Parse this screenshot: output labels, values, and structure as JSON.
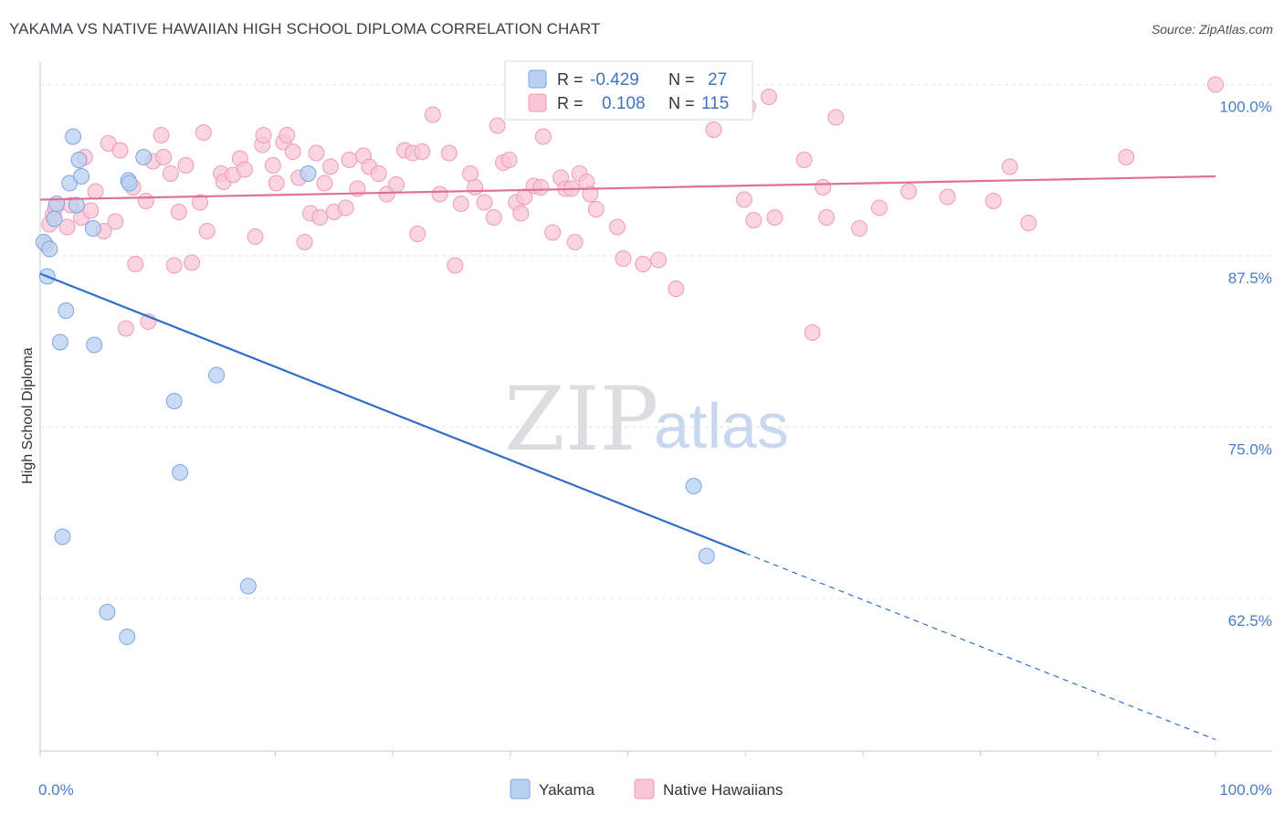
{
  "title": "YAKAMA VS NATIVE HAWAIIAN HIGH SCHOOL DIPLOMA CORRELATION CHART",
  "source": "Source: ZipAtlas.com",
  "watermark": {
    "zip": "ZIP",
    "atlas": "atlas"
  },
  "colors": {
    "yakama_fill": "#b8d0f2",
    "yakama_stroke": "#7ea6df",
    "yakama_line": "#2f6fcc",
    "hawaiian_fill": "#f8c6d6",
    "hawaiian_stroke": "#ee9cb7",
    "hawaiian_line": "#e0709a",
    "tick_text": "#4a7cc9",
    "grid": "#e3e5e8"
  },
  "legend_stats": {
    "row1": {
      "r_label": "R =",
      "r_value": "-0.429",
      "n_label": "N =",
      "n_value": "27"
    },
    "row2": {
      "r_label": "R =",
      "r_value": "0.108",
      "n_label": "N =",
      "n_value": "115"
    }
  },
  "chart_data": {
    "type": "scatter",
    "title": "YAKAMA VS NATIVE HAWAIIAN HIGH SCHOOL DIPLOMA CORRELATION CHART",
    "xlabel": "",
    "ylabel": "High School Diploma",
    "xlim": [
      0,
      100
    ],
    "ylim": [
      51.5,
      101.5
    ],
    "x_tick_labels": [
      "0.0%",
      "100.0%"
    ],
    "y_ticks": [
      62.5,
      75.0,
      87.5,
      100.0
    ],
    "y_tick_labels": [
      "62.5%",
      "75.0%",
      "87.5%",
      "100.0%"
    ],
    "grid": true,
    "legend_position": "bottom-center",
    "series": [
      {
        "name": "Yakama",
        "r": -0.429,
        "n": 27,
        "trend": {
          "x0": 0,
          "y0": 86.2,
          "x1": 60,
          "y1": 65.8,
          "dashed_to_x": 100,
          "dashed_to_y": 52.2
        },
        "points": [
          [
            0.3,
            88.5
          ],
          [
            0.6,
            86.0
          ],
          [
            0.8,
            88.0
          ],
          [
            1.2,
            90.2
          ],
          [
            1.4,
            91.3
          ],
          [
            1.7,
            81.2
          ],
          [
            1.9,
            67.0
          ],
          [
            2.2,
            83.5
          ],
          [
            2.5,
            92.8
          ],
          [
            2.8,
            96.2
          ],
          [
            3.1,
            91.2
          ],
          [
            3.3,
            94.5
          ],
          [
            3.5,
            93.3
          ],
          [
            4.5,
            89.5
          ],
          [
            4.6,
            81.0
          ],
          [
            5.7,
            61.5
          ],
          [
            7.4,
            59.7
          ],
          [
            7.5,
            93.0
          ],
          [
            7.6,
            92.8
          ],
          [
            8.8,
            94.7
          ],
          [
            11.4,
            76.9
          ],
          [
            11.9,
            71.7
          ],
          [
            15.0,
            78.8
          ],
          [
            17.7,
            63.4
          ],
          [
            22.8,
            93.5
          ],
          [
            55.6,
            70.7
          ],
          [
            56.7,
            65.6
          ]
        ]
      },
      {
        "name": "Native Hawaiians",
        "r": 0.108,
        "n": 115,
        "trend": {
          "x0": 0,
          "y0": 91.6,
          "x1": 100,
          "y1": 93.3
        },
        "points": [
          [
            0.5,
            88.3
          ],
          [
            0.8,
            89.8
          ],
          [
            1.1,
            90.5
          ],
          [
            1.3,
            91.0
          ],
          [
            2.3,
            89.6
          ],
          [
            2.6,
            91.2
          ],
          [
            3.5,
            90.3
          ],
          [
            3.8,
            94.7
          ],
          [
            4.3,
            90.8
          ],
          [
            4.7,
            92.2
          ],
          [
            5.4,
            89.3
          ],
          [
            5.8,
            95.7
          ],
          [
            6.4,
            90.0
          ],
          [
            6.8,
            95.2
          ],
          [
            7.3,
            82.2
          ],
          [
            7.9,
            92.5
          ],
          [
            8.1,
            86.9
          ],
          [
            9.0,
            91.5
          ],
          [
            9.2,
            82.7
          ],
          [
            9.6,
            94.4
          ],
          [
            10.3,
            96.3
          ],
          [
            10.5,
            94.7
          ],
          [
            11.1,
            93.5
          ],
          [
            11.4,
            86.8
          ],
          [
            11.8,
            90.7
          ],
          [
            12.4,
            94.1
          ],
          [
            12.9,
            87.0
          ],
          [
            13.6,
            91.4
          ],
          [
            13.9,
            96.5
          ],
          [
            14.2,
            89.3
          ],
          [
            15.4,
            93.5
          ],
          [
            15.6,
            92.9
          ],
          [
            16.4,
            93.4
          ],
          [
            17.0,
            94.6
          ],
          [
            17.4,
            93.8
          ],
          [
            18.3,
            88.9
          ],
          [
            18.9,
            95.6
          ],
          [
            19.0,
            96.3
          ],
          [
            19.8,
            94.1
          ],
          [
            20.1,
            92.8
          ],
          [
            20.7,
            95.8
          ],
          [
            21.0,
            96.3
          ],
          [
            21.5,
            95.1
          ],
          [
            22.0,
            93.2
          ],
          [
            22.5,
            88.5
          ],
          [
            23.0,
            90.6
          ],
          [
            23.5,
            95.0
          ],
          [
            23.8,
            90.3
          ],
          [
            24.2,
            92.8
          ],
          [
            24.7,
            94.0
          ],
          [
            25.0,
            90.7
          ],
          [
            26.0,
            91.0
          ],
          [
            26.3,
            94.5
          ],
          [
            27.0,
            92.4
          ],
          [
            27.5,
            94.8
          ],
          [
            28.0,
            94.0
          ],
          [
            28.8,
            93.5
          ],
          [
            29.5,
            92.0
          ],
          [
            30.3,
            92.7
          ],
          [
            31.0,
            95.2
          ],
          [
            31.7,
            95.0
          ],
          [
            32.1,
            89.1
          ],
          [
            32.5,
            95.1
          ],
          [
            33.4,
            97.8
          ],
          [
            34.0,
            92.0
          ],
          [
            34.8,
            95.0
          ],
          [
            35.3,
            86.8
          ],
          [
            35.8,
            91.3
          ],
          [
            36.6,
            93.5
          ],
          [
            37.0,
            92.5
          ],
          [
            37.8,
            91.4
          ],
          [
            38.6,
            90.3
          ],
          [
            38.9,
            97.0
          ],
          [
            39.4,
            94.3
          ],
          [
            39.9,
            94.5
          ],
          [
            40.5,
            91.4
          ],
          [
            40.9,
            90.6
          ],
          [
            41.2,
            91.8
          ],
          [
            42.0,
            92.6
          ],
          [
            42.6,
            92.5
          ],
          [
            42.8,
            96.2
          ],
          [
            43.6,
            89.2
          ],
          [
            44.3,
            93.2
          ],
          [
            44.7,
            92.4
          ],
          [
            45.2,
            92.4
          ],
          [
            45.5,
            88.5
          ],
          [
            45.9,
            93.5
          ],
          [
            46.5,
            92.9
          ],
          [
            46.8,
            92.0
          ],
          [
            47.3,
            90.9
          ],
          [
            49.1,
            89.6
          ],
          [
            49.6,
            87.3
          ],
          [
            51.3,
            86.9
          ],
          [
            52.6,
            87.2
          ],
          [
            54.1,
            85.1
          ],
          [
            57.3,
            96.7
          ],
          [
            59.9,
            91.6
          ],
          [
            60.2,
            98.4
          ],
          [
            60.7,
            90.1
          ],
          [
            62.0,
            99.1
          ],
          [
            62.5,
            90.3
          ],
          [
            65.0,
            94.5
          ],
          [
            65.7,
            81.9
          ],
          [
            66.6,
            92.5
          ],
          [
            66.9,
            90.3
          ],
          [
            67.7,
            97.6
          ],
          [
            69.7,
            89.5
          ],
          [
            71.4,
            91.0
          ],
          [
            73.9,
            92.2
          ],
          [
            77.2,
            91.8
          ],
          [
            81.1,
            91.5
          ],
          [
            82.5,
            94.0
          ],
          [
            84.1,
            89.9
          ],
          [
            92.4,
            94.7
          ],
          [
            100.0,
            100.0
          ]
        ]
      }
    ]
  }
}
